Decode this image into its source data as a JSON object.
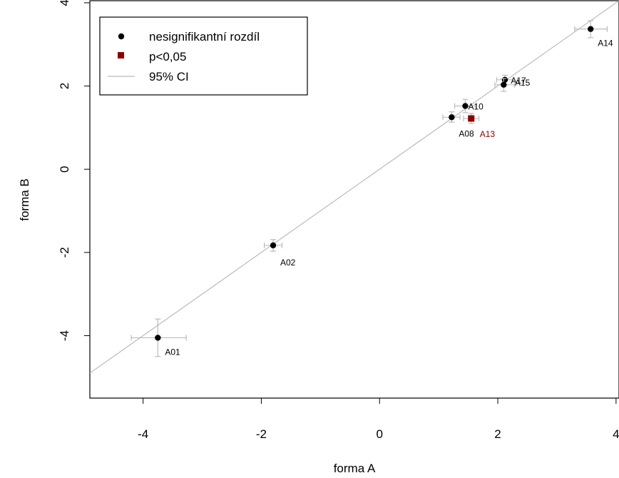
{
  "chart_data": {
    "type": "scatter",
    "title": "",
    "xlabel": "forma A",
    "ylabel": "forma B",
    "xlim": [
      -4.9,
      4.05
    ],
    "ylim": [
      -5.5,
      4.05
    ],
    "xticks": [
      -4,
      -2,
      0,
      2,
      4
    ],
    "yticks": [
      -4,
      -2,
      0,
      2,
      4
    ],
    "xtick_labels": [
      "-4",
      "-2",
      "0",
      "2",
      "4"
    ],
    "ytick_labels": [
      "-4",
      "-2",
      "0",
      "2",
      "4"
    ],
    "grid": false,
    "legend": {
      "position": "top-left",
      "entries": [
        {
          "label": "nesignifikantní rozdíl",
          "marker": "circle",
          "color": "#000000"
        },
        {
          "label": "p<0,05",
          "marker": "square",
          "color": "#8b0000"
        },
        {
          "label": "95% CI",
          "marker": "line",
          "color": "#bbbbbb"
        }
      ]
    },
    "diagonal": {
      "x": [
        -4.9,
        4.05
      ],
      "y": [
        -4.9,
        4.05
      ],
      "color": "#bbbbbb"
    },
    "points": [
      {
        "label": "A01",
        "x": -3.75,
        "y": -4.05,
        "x_ci": [
          -4.2,
          -3.27
        ],
        "y_ci": [
          -4.5,
          -3.6
        ],
        "group": "ns"
      },
      {
        "label": "A02",
        "x": -1.8,
        "y": -1.83,
        "x_ci": [
          -1.95,
          -1.65
        ],
        "y_ci": [
          -1.97,
          -1.69
        ],
        "group": "ns"
      },
      {
        "label": "A08",
        "x": 1.22,
        "y": 1.25,
        "x_ci": [
          1.07,
          1.36
        ],
        "y_ci": [
          1.13,
          1.38
        ],
        "group": "ns"
      },
      {
        "label": "A10",
        "x": 1.45,
        "y": 1.52,
        "x_ci": [
          1.27,
          1.63
        ],
        "y_ci": [
          1.36,
          1.68
        ],
        "group": "ns"
      },
      {
        "label": "A13",
        "x": 1.55,
        "y": 1.22,
        "x_ci": [
          1.42,
          1.68
        ],
        "y_ci": [
          1.1,
          1.34
        ],
        "group": "sig"
      },
      {
        "label": "A15",
        "x": 2.12,
        "y": 2.15,
        "x_ci": [
          1.98,
          2.26
        ],
        "y_ci": [
          2.04,
          2.26
        ],
        "group": "ns"
      },
      {
        "label": "A17",
        "x": 2.1,
        "y": 2.03,
        "x_ci": [
          1.95,
          2.28
        ],
        "y_ci": [
          1.87,
          2.18
        ],
        "group": "ns"
      },
      {
        "label": "A14",
        "x": 3.57,
        "y": 3.37,
        "x_ci": [
          3.3,
          3.85
        ],
        "y_ci": [
          3.16,
          3.57
        ],
        "group": "ns"
      }
    ],
    "group_colors": {
      "ns": "#000000",
      "sig": "#8b0000"
    },
    "ci_color": "#bbbbbb"
  }
}
